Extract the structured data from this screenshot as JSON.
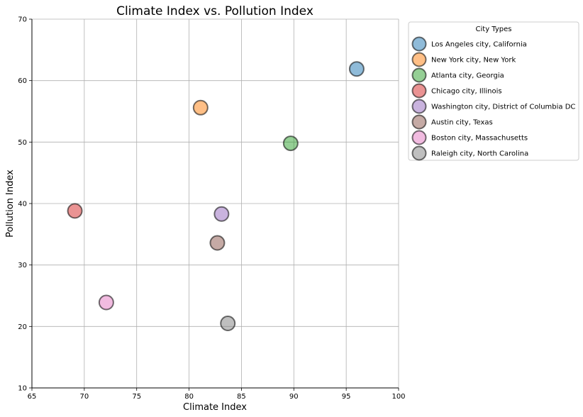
{
  "chart_data": {
    "type": "scatter",
    "title": "Climate Index vs. Pollution Index",
    "xlabel": "Climate Index",
    "ylabel": "Pollution Index",
    "xlim": [
      65,
      100
    ],
    "ylim": [
      10,
      70
    ],
    "xticks": [
      65,
      70,
      75,
      80,
      85,
      90,
      95,
      100
    ],
    "yticks": [
      10,
      20,
      30,
      40,
      50,
      60,
      70
    ],
    "grid": true,
    "legend": {
      "title": "City Types",
      "placement": "outside-top-right"
    },
    "series": [
      {
        "name": "Los Angeles city, California",
        "color": "#1f77b4",
        "x": [
          96.0
        ],
        "y": [
          61.9
        ]
      },
      {
        "name": "New York city, New York",
        "color": "#ff7f0e",
        "x": [
          81.1
        ],
        "y": [
          55.6
        ]
      },
      {
        "name": "Atlanta city, Georgia",
        "color": "#2ca02c",
        "x": [
          89.7
        ],
        "y": [
          49.8
        ]
      },
      {
        "name": "Chicago city, Illinois",
        "color": "#d62728",
        "x": [
          69.1
        ],
        "y": [
          38.8
        ]
      },
      {
        "name": "Washington city, District of Columbia DC",
        "color": "#9467bd",
        "x": [
          83.1
        ],
        "y": [
          38.3
        ]
      },
      {
        "name": "Austin city, Texas",
        "color": "#8c564b",
        "x": [
          82.7
        ],
        "y": [
          33.6
        ]
      },
      {
        "name": "Boston city, Massachusetts",
        "color": "#e377c2",
        "x": [
          72.1
        ],
        "y": [
          23.9
        ]
      },
      {
        "name": "Raleigh city, North Carolina",
        "color": "#7f7f7f",
        "x": [
          83.7
        ],
        "y": [
          20.5
        ]
      }
    ]
  }
}
